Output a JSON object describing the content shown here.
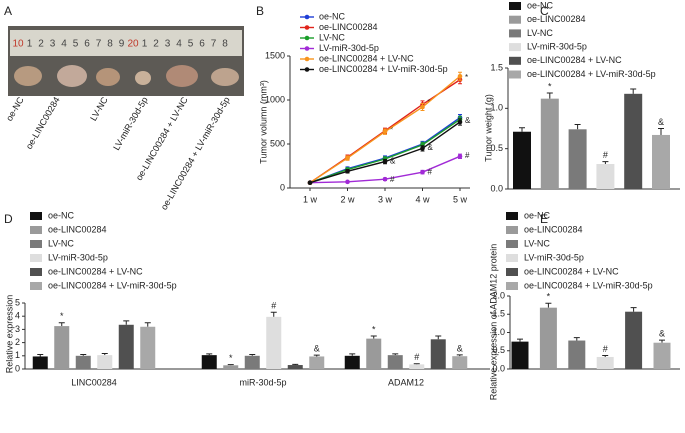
{
  "panel_a": {
    "label": "A",
    "ruler_numbers": [
      10,
      1,
      2,
      3,
      4,
      5,
      6,
      7,
      8,
      9,
      20,
      1,
      2,
      3,
      4,
      5,
      6,
      7,
      8
    ],
    "sample_labels": [
      "oe-NC",
      "oe-LINC00284",
      "LV-NC",
      "LV-miR-30d-5p",
      "oe-LINC00284 + LV-NC",
      "oe-LINC00284 + LV-miR-30d-5p"
    ]
  },
  "chart_data": [
    {
      "type": "line",
      "panel_label": "B",
      "y_label": "Tumor volumn (mm³)",
      "categories": [
        "1 w",
        "2 w",
        "3 w",
        "4 w",
        "5 w"
      ],
      "ylim": [
        0,
        1500
      ],
      "yticks": [
        0,
        500,
        1000,
        1500
      ],
      "series": [
        {
          "name": "oe-NC",
          "color": "#1f3fd6",
          "values": [
            60,
            220,
            340,
            500,
            800
          ],
          "errors": [
            10,
            20,
            25,
            30,
            35
          ],
          "markers": [
            null,
            null,
            null,
            null,
            null
          ]
        },
        {
          "name": "oe-LINC00284",
          "color": "#e0231b",
          "values": [
            60,
            350,
            650,
            950,
            1230
          ],
          "errors": [
            10,
            25,
            30,
            40,
            45
          ],
          "markers": [
            null,
            null,
            "*",
            "*",
            "*"
          ]
        },
        {
          "name": "LV-NC",
          "color": "#1a9e2a",
          "values": [
            60,
            210,
            330,
            490,
            780
          ],
          "errors": [
            10,
            20,
            25,
            30,
            35
          ],
          "markers": [
            null,
            null,
            null,
            null,
            null
          ]
        },
        {
          "name": "LV-miR-30d-5p",
          "color": "#a12ad6",
          "values": [
            60,
            70,
            100,
            180,
            360
          ],
          "errors": [
            10,
            10,
            15,
            20,
            25
          ],
          "markers": [
            null,
            null,
            "#",
            "#",
            "#"
          ]
        },
        {
          "name": "oe-LINC00284 + LV-NC",
          "color": "#f7941d",
          "values": [
            60,
            340,
            640,
            920,
            1270
          ],
          "errors": [
            10,
            25,
            30,
            40,
            45
          ],
          "markers": [
            null,
            null,
            null,
            null,
            null
          ]
        },
        {
          "name": "oe-LINC00284 + LV-miR-30d-5p",
          "color": "#111111",
          "values": [
            60,
            190,
            300,
            450,
            750
          ],
          "errors": [
            10,
            20,
            25,
            30,
            35
          ],
          "markers": [
            null,
            null,
            "&",
            "&",
            "&"
          ]
        }
      ]
    },
    {
      "type": "bar",
      "panel_label": "C",
      "y_label": "Tumor weight (g)",
      "ylim": [
        0,
        1.5
      ],
      "yticks": [
        {
          "value": 0,
          "label": "0.0"
        },
        0.5,
        {
          "value": 1,
          "label": "1.0"
        },
        1.5
      ],
      "series": [
        {
          "name": "oe-NC",
          "color": "#111111",
          "values": [
            0.71
          ],
          "errors": [
            0.05
          ],
          "markers": [
            null
          ]
        },
        {
          "name": "oe-LINC00284",
          "color": "#9a9a9a",
          "values": [
            1.12
          ],
          "errors": [
            0.07
          ],
          "markers": [
            "*"
          ]
        },
        {
          "name": "LV-NC",
          "color": "#7a7a7a",
          "values": [
            0.74
          ],
          "errors": [
            0.06
          ],
          "markers": [
            null
          ]
        },
        {
          "name": "LV-miR-30d-5p",
          "color": "#dedede",
          "values": [
            0.31
          ],
          "errors": [
            0.03
          ],
          "markers": [
            "#"
          ]
        },
        {
          "name": "oe-LINC00284 + LV-NC",
          "color": "#505050",
          "values": [
            1.18
          ],
          "errors": [
            0.06
          ],
          "markers": [
            null
          ]
        },
        {
          "name": "oe-LINC00284 + LV-miR-30d-5p",
          "color": "#a8a8a8",
          "values": [
            0.67
          ],
          "errors": [
            0.08
          ],
          "markers": [
            "&"
          ]
        }
      ]
    },
    {
      "type": "bar",
      "panel_label": "D",
      "y_label": "Relative expression",
      "categories": [
        "LINC00284",
        "miR-30d-5p",
        "ADAM12"
      ],
      "ylim": [
        0,
        5
      ],
      "yticks": [
        0,
        1,
        2,
        3,
        4,
        5
      ],
      "series": [
        {
          "name": "oe-NC",
          "color": "#111111",
          "values": [
            0.95,
            1.05,
            1.0
          ],
          "errors": [
            0.15,
            0.1,
            0.15
          ],
          "markers": [
            null,
            null,
            null
          ]
        },
        {
          "name": "oe-LINC00284",
          "color": "#9a9a9a",
          "values": [
            3.25,
            0.28,
            2.3
          ],
          "errors": [
            0.25,
            0.05,
            0.2
          ],
          "markers": [
            "*",
            "*",
            "*"
          ]
        },
        {
          "name": "LV-NC",
          "color": "#7a7a7a",
          "values": [
            1.0,
            1.0,
            1.05
          ],
          "errors": [
            0.1,
            0.1,
            0.1
          ],
          "markers": [
            null,
            null,
            null
          ]
        },
        {
          "name": "LV-miR-30d-5p",
          "color": "#dedede",
          "values": [
            1.05,
            3.95,
            0.35
          ],
          "errors": [
            0.12,
            0.35,
            0.05
          ],
          "markers": [
            null,
            "#",
            "#"
          ]
        },
        {
          "name": "oe-LINC00284 + LV-NC",
          "color": "#505050",
          "values": [
            3.35,
            0.3,
            2.25
          ],
          "errors": [
            0.3,
            0.05,
            0.25
          ],
          "markers": [
            null,
            null,
            null
          ]
        },
        {
          "name": "oe-LINC00284 + LV-miR-30d-5p",
          "color": "#a8a8a8",
          "values": [
            3.2,
            0.95,
            0.97
          ],
          "errors": [
            0.3,
            0.1,
            0.1
          ],
          "markers": [
            null,
            "&",
            "&"
          ]
        }
      ]
    },
    {
      "type": "bar",
      "panel_label": "E",
      "y_label": "Relative expression of ADAM12 protein",
      "ylim": [
        0,
        2
      ],
      "yticks": [
        {
          "value": 0,
          "label": "0.0"
        },
        0.5,
        {
          "value": 1,
          "label": "1.0"
        },
        1.5,
        {
          "value": 2,
          "label": "2.0"
        }
      ],
      "series": [
        {
          "name": "oe-NC",
          "color": "#111111",
          "values": [
            0.75
          ],
          "errors": [
            0.07
          ],
          "markers": [
            null
          ]
        },
        {
          "name": "oe-LINC00284",
          "color": "#9a9a9a",
          "values": [
            1.68
          ],
          "errors": [
            0.12
          ],
          "markers": [
            "*"
          ]
        },
        {
          "name": "LV-NC",
          "color": "#7a7a7a",
          "values": [
            0.78
          ],
          "errors": [
            0.08
          ],
          "markers": [
            null
          ]
        },
        {
          "name": "LV-miR-30d-5p",
          "color": "#dedede",
          "values": [
            0.33
          ],
          "errors": [
            0.04
          ],
          "markers": [
            "#"
          ]
        },
        {
          "name": "oe-LINC00284 + LV-NC",
          "color": "#505050",
          "values": [
            1.57
          ],
          "errors": [
            0.11
          ],
          "markers": [
            null
          ]
        },
        {
          "name": "oe-LINC00284 + LV-miR-30d-5p",
          "color": "#a8a8a8",
          "values": [
            0.72
          ],
          "errors": [
            0.07
          ],
          "markers": [
            "&"
          ]
        }
      ]
    }
  ]
}
